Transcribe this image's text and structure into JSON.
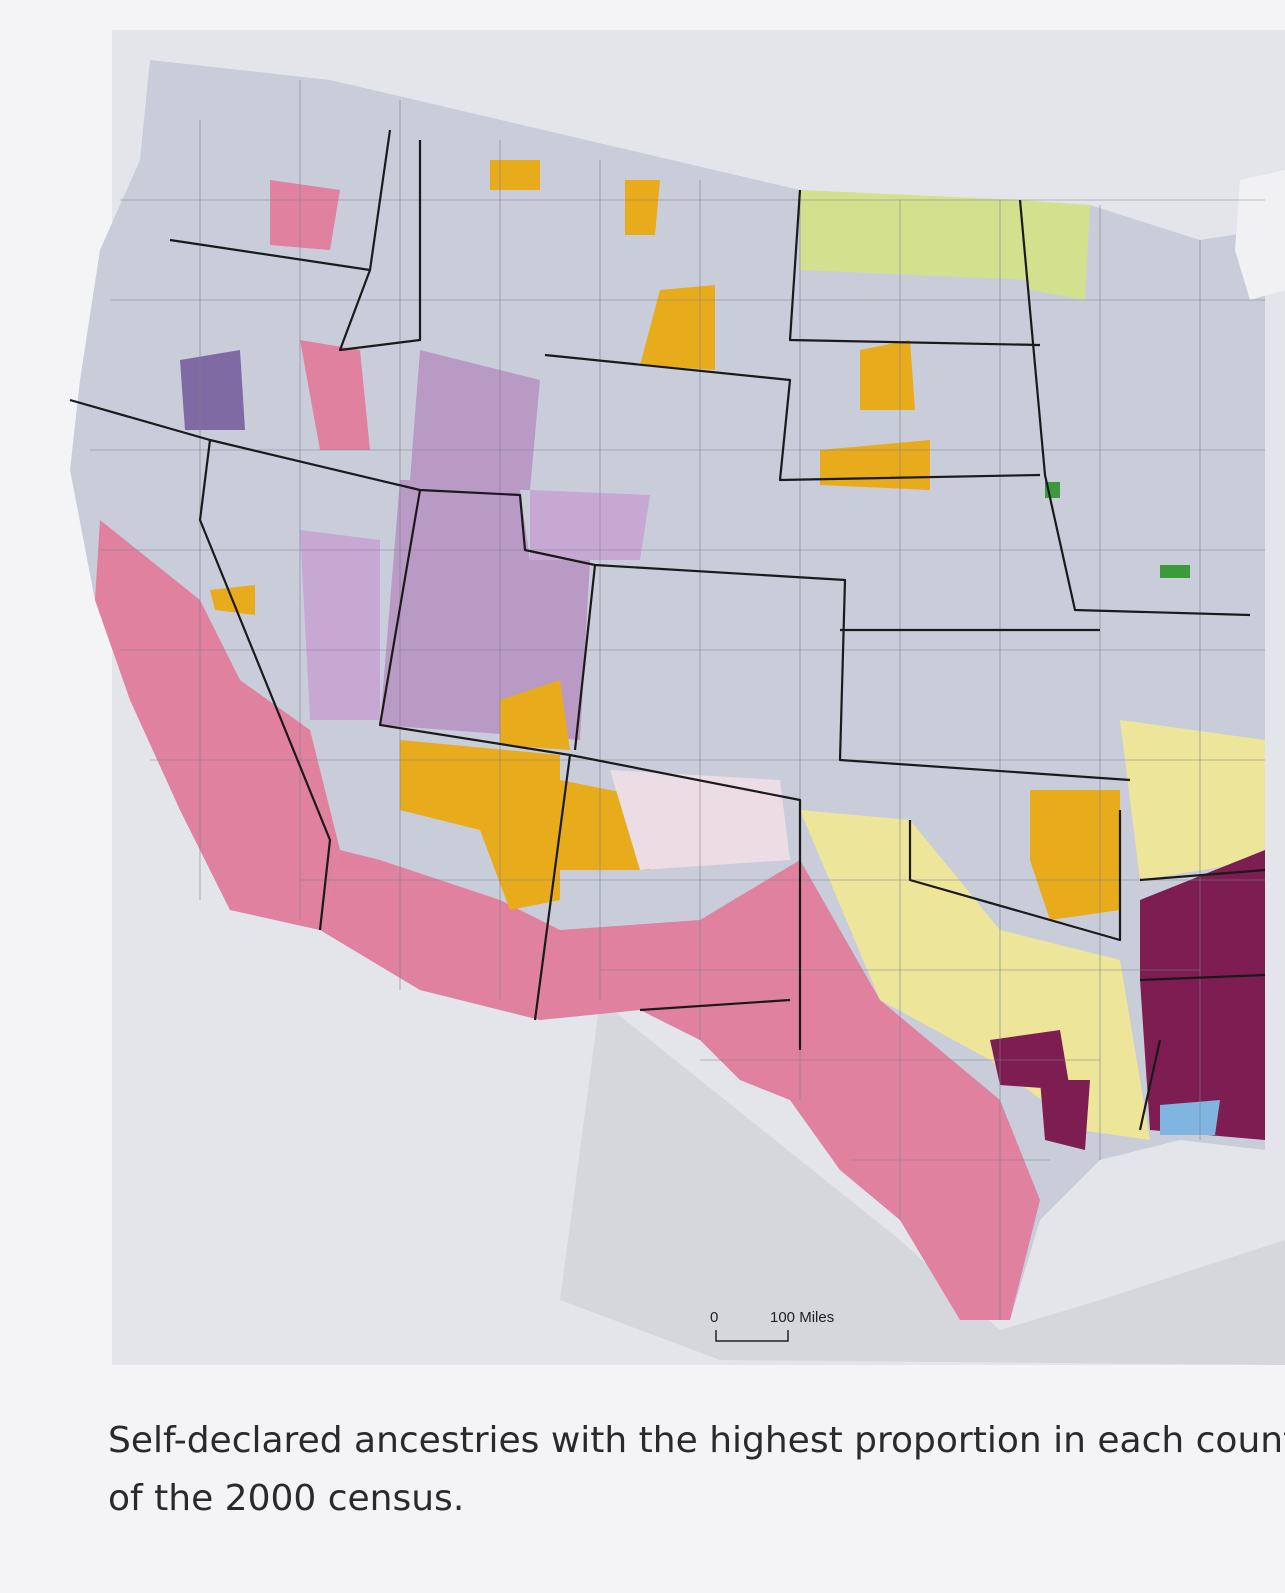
{
  "scale_bar": {
    "zero": "0",
    "label": "100 Miles"
  },
  "caption": {
    "lines": [
      "Self-declared ancestries with the highest proportion in each count",
      "of the 2000 census."
    ]
  }
}
